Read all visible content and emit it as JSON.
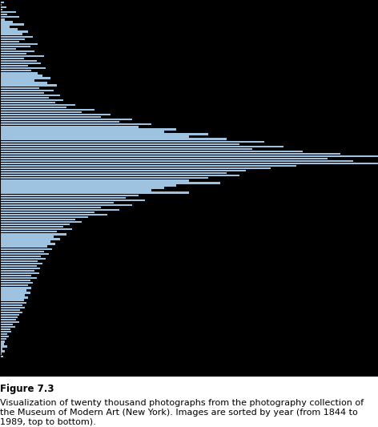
{
  "figure": {
    "label": "Figure 7.3",
    "caption": "Visualization of twenty thousand photographs from the photography collection of the Museum of Modern Art (New York). Images are sorted by year (from 1844 to 1989, top to bottom)."
  },
  "chart_data": {
    "type": "bar",
    "orientation": "horizontal",
    "tick_labels": false,
    "color": "#9ec3e0",
    "xlim": [
      0,
      600
    ],
    "values": [
      6,
      3,
      10,
      4,
      25,
      12,
      30,
      8,
      20,
      38,
      15,
      28,
      45,
      35,
      52,
      40,
      30,
      60,
      48,
      25,
      55,
      42,
      70,
      38,
      58,
      65,
      45,
      72,
      50,
      60,
      68,
      80,
      55,
      75,
      90,
      62,
      85,
      70,
      95,
      78,
      100,
      88,
      120,
      105,
      150,
      130,
      175,
      160,
      210,
      190,
      240,
      220,
      280,
      260,
      330,
      300,
      360,
      420,
      380,
      450,
      400,
      480,
      540,
      600,
      520,
      560,
      600,
      470,
      430,
      390,
      360,
      380,
      330,
      300,
      350,
      280,
      260,
      240,
      300,
      220,
      200,
      230,
      180,
      210,
      160,
      190,
      150,
      170,
      140,
      120,
      130,
      110,
      100,
      115,
      90,
      105,
      85,
      95,
      80,
      88,
      75,
      82,
      70,
      78,
      65,
      72,
      60,
      68,
      58,
      64,
      55,
      62,
      50,
      58,
      48,
      52,
      45,
      50,
      42,
      48,
      40,
      45,
      38,
      42,
      35,
      40,
      32,
      36,
      30,
      28,
      25,
      30,
      20,
      24,
      16,
      18,
      12,
      14,
      10,
      8,
      6,
      12,
      4,
      8,
      3,
      5
    ]
  }
}
